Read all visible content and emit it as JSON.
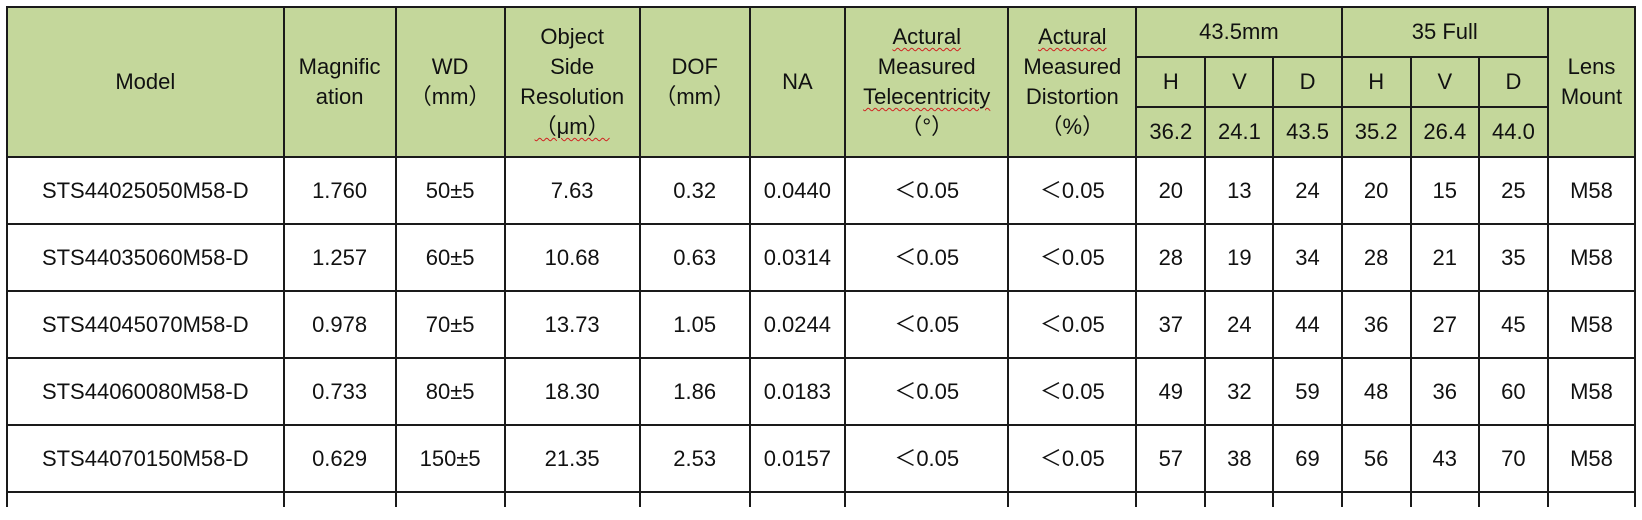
{
  "header": {
    "model": "Model",
    "magnification": [
      "Magnific",
      "ation"
    ],
    "wd": [
      "WD",
      "（mm）"
    ],
    "object_side_resolution": [
      "Object",
      "Side",
      "Resolution",
      "（μm）"
    ],
    "dof": [
      "DOF",
      "（mm）"
    ],
    "na": "NA",
    "telecentricity": [
      "Actural",
      "Measured",
      "Telecentricity",
      "（°）"
    ],
    "distortion": [
      "Actural",
      "Measured",
      "Distortion",
      "（%）"
    ],
    "group1": {
      "title": "43.5mm",
      "h": "H",
      "v": "V",
      "d": "D",
      "h_val": "36.2",
      "v_val": "24.1",
      "d_val": "43.5"
    },
    "group2": {
      "title": "35 Full",
      "h": "H",
      "v": "V",
      "d": "D",
      "h_val": "35.2",
      "v_val": "26.4",
      "d_val": "44.0"
    },
    "lens_mount": [
      "Lens",
      "Mount"
    ]
  },
  "rows": [
    [
      "STS44025050M58-D",
      "1.760",
      "50±5",
      "7.63",
      "0.32",
      "0.0440",
      "＜0.05",
      "＜0.05",
      "20",
      "13",
      "24",
      "20",
      "15",
      "25",
      "M58"
    ],
    [
      "STS44035060M58-D",
      "1.257",
      "60±5",
      "10.68",
      "0.63",
      "0.0314",
      "＜0.05",
      "＜0.05",
      "28",
      "19",
      "34",
      "28",
      "21",
      "35",
      "M58"
    ],
    [
      "STS44045070M58-D",
      "0.978",
      "70±5",
      "13.73",
      "1.05",
      "0.0244",
      "＜0.05",
      "＜0.05",
      "37",
      "24",
      "44",
      "36",
      "27",
      "45",
      "M58"
    ],
    [
      "STS44060080M58-D",
      "0.733",
      "80±5",
      "18.30",
      "1.86",
      "0.0183",
      "＜0.05",
      "＜0.05",
      "49",
      "32",
      "59",
      "48",
      "36",
      "60",
      "M58"
    ],
    [
      "STS44070150M58-D",
      "0.629",
      "150±5",
      "21.35",
      "2.53",
      "0.0157",
      "＜0.05",
      "＜0.05",
      "57",
      "38",
      "69",
      "56",
      "43",
      "70",
      "M58"
    ]
  ],
  "colors": {
    "header_bg": "#c4d79b",
    "border": "#1a1a1a",
    "spell_underline": "#d02020"
  }
}
